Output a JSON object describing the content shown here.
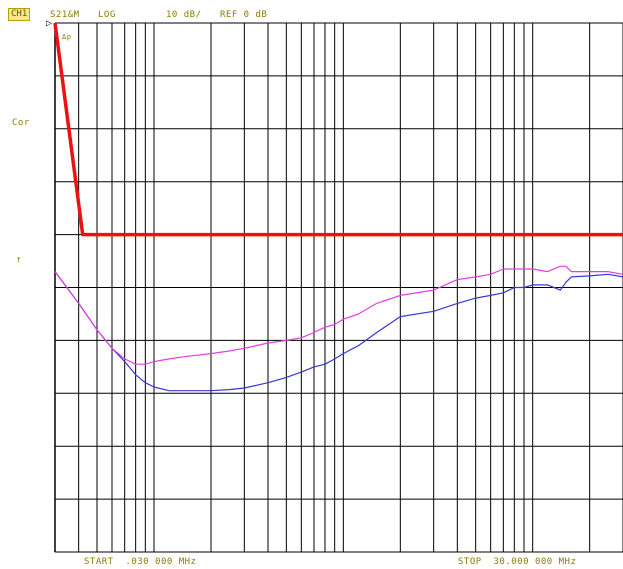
{
  "header": {
    "channel": "CH1",
    "measurement": "S21&M",
    "format": "LOG",
    "scale": "10 dB/",
    "reference": "REF 0 dB"
  },
  "left_labels": {
    "cor": "Cor",
    "ref_marker": "↑"
  },
  "trace_marker": "▷",
  "trace_marker_label": "Δp",
  "footer": {
    "start": "START  .030 000 MHz",
    "stop": "STOP  30.000 000 MHz"
  },
  "colors": {
    "grid": "#000000",
    "limit_line": "#ee1111",
    "trace_blue": "#3838d8",
    "trace_magenta": "#e040e0",
    "annotation": "#8a7a00",
    "background": "#ffffff"
  },
  "chart_data": {
    "type": "line",
    "title": "",
    "xlabel": "",
    "ylabel": "",
    "x_scale": "log",
    "xlim": [
      0.03,
      30
    ],
    "ylim": [
      -100,
      0
    ],
    "y_divisions": 10,
    "y_scale_per_div_db": 10,
    "reference_db": 0,
    "grid": true,
    "series": [
      {
        "color": "#ee1111",
        "x": [
          0.03,
          0.042,
          30
        ],
        "y": [
          0,
          -40,
          -40
        ]
      },
      {
        "color": "#3838d8",
        "x": [
          0.03,
          0.04,
          0.05,
          0.06,
          0.07,
          0.08,
          0.09,
          0.1,
          0.12,
          0.15,
          0.2,
          0.25,
          0.3,
          0.4,
          0.5,
          0.6,
          0.7,
          0.8,
          0.9,
          1,
          1.2,
          1.5,
          2,
          3,
          4,
          5,
          6,
          7,
          8,
          9,
          10,
          12,
          14,
          15,
          16,
          20,
          25,
          30
        ],
        "y": [
          -47,
          -53,
          -58,
          -61.5,
          -64,
          -66.5,
          -68,
          -68.8,
          -69.5,
          -69.5,
          -69.5,
          -69.3,
          -69,
          -68,
          -67,
          -66,
          -65,
          -64.5,
          -63.5,
          -62.5,
          -61,
          -58.5,
          -55.5,
          -54.5,
          -53,
          -52,
          -51.5,
          -51,
          -50,
          -50,
          -49.5,
          -49.5,
          -50.5,
          -49,
          -48,
          -47.8,
          -47.5,
          -48
        ]
      },
      {
        "color": "#e040e0",
        "x": [
          0.03,
          0.04,
          0.05,
          0.06,
          0.07,
          0.08,
          0.09,
          0.1,
          0.12,
          0.15,
          0.2,
          0.25,
          0.3,
          0.4,
          0.5,
          0.6,
          0.7,
          0.8,
          0.9,
          1,
          1.2,
          1.5,
          2,
          3,
          4,
          5,
          6,
          7,
          8,
          9,
          10,
          12,
          14,
          15,
          16,
          20,
          25,
          30
        ],
        "y": [
          -47,
          -53,
          -58,
          -61.5,
          -63.5,
          -64.5,
          -64.5,
          -64,
          -63.5,
          -63,
          -62.5,
          -62,
          -61.5,
          -60.5,
          -60,
          -59.5,
          -58.5,
          -57.5,
          -57,
          -56,
          -55,
          -53,
          -51.5,
          -50.5,
          -48.5,
          -48,
          -47.5,
          -46.5,
          -46.5,
          -46.5,
          -46.5,
          -47,
          -46,
          -46,
          -47,
          -47,
          -47,
          -47.5
        ]
      }
    ]
  }
}
